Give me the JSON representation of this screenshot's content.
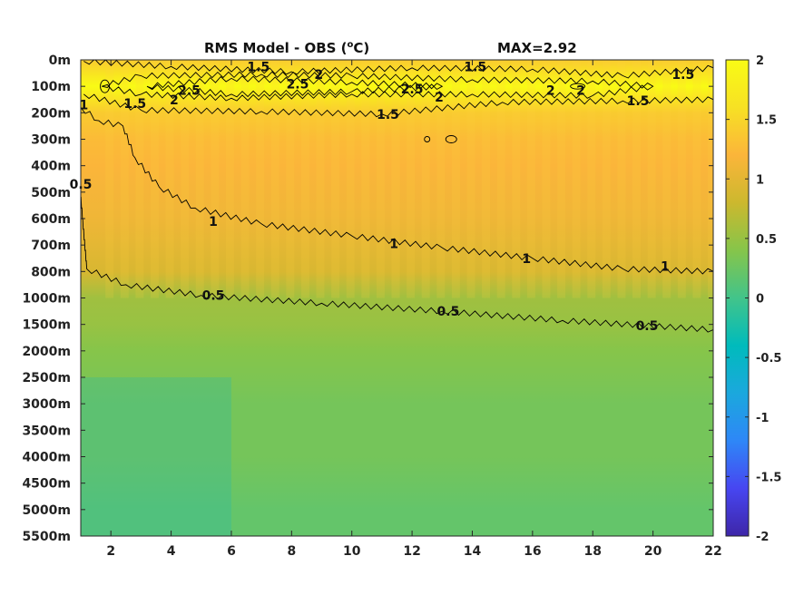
{
  "chart_data": {
    "type": "heatmap",
    "title": "RMS Model - OBS (°C)",
    "title_parts": {
      "before": "RMS Model - OBS (",
      "superscript": "o",
      "after": "C)"
    },
    "max_label": "MAX=2.92",
    "xlim": [
      1,
      22
    ],
    "x_ticks": [
      2,
      4,
      6,
      8,
      10,
      12,
      14,
      16,
      18,
      20,
      22
    ],
    "x_tick_labels": [
      "2",
      "4",
      "6",
      "8",
      "10",
      "12",
      "14",
      "16",
      "18",
      "20",
      "22"
    ],
    "y_levels": [
      "0m",
      "100m",
      "200m",
      "300m",
      "400m",
      "500m",
      "600m",
      "700m",
      "800m",
      "1000m",
      "1500m",
      "2000m",
      "2500m",
      "3000m",
      "3500m",
      "4000m",
      "4500m",
      "5000m",
      "5500m"
    ],
    "colorbar": {
      "range": [
        -2,
        2
      ],
      "ticks": [
        2,
        1.5,
        1,
        0.5,
        0,
        -0.5,
        -1,
        -1.5,
        -2
      ],
      "tick_labels": [
        "2",
        "1.5",
        "1",
        "0.5",
        "0",
        "-0.5",
        "-1",
        "-1.5",
        "-2"
      ],
      "colormap": [
        "#3e26a8",
        "#4746f1",
        "#2e87f7",
        "#1ba8dd",
        "#00bbbc",
        "#42c48a",
        "#86c54a",
        "#ccb82e",
        "#fbb53a",
        "#f7e124",
        "#f9fb15"
      ]
    },
    "depth_profile": [
      {
        "level": "0m",
        "value": 1.4
      },
      {
        "level": "100m",
        "value": 2.5
      },
      {
        "level": "200m",
        "value": 1.4
      },
      {
        "level": "300m",
        "value": 1.25
      },
      {
        "level": "400m",
        "value": 1.2
      },
      {
        "level": "500m",
        "value": 1.15
      },
      {
        "level": "600m",
        "value": 1.1
      },
      {
        "level": "700m",
        "value": 1.0
      },
      {
        "level": "800m",
        "value": 0.9
      },
      {
        "level": "1000m",
        "value": 0.55
      },
      {
        "level": "1500m",
        "value": 0.5
      },
      {
        "level": "2000m",
        "value": 0.4
      },
      {
        "level": "2500m",
        "value": 0.35
      },
      {
        "level": "3000m",
        "value": 0.3
      },
      {
        "level": "3500m",
        "value": 0.3
      },
      {
        "level": "4000m",
        "value": 0.3
      },
      {
        "level": "4500m",
        "value": 0.25
      },
      {
        "level": "5000m",
        "value": 0.2
      },
      {
        "level": "5500m",
        "value": 0.2
      }
    ],
    "contour_labels": [
      {
        "text": "1.5",
        "x": 6.9,
        "level_index": 0.25
      },
      {
        "text": "2",
        "x": 8.9,
        "level_index": 0.55
      },
      {
        "text": "1.5",
        "x": 14.1,
        "level_index": 0.25
      },
      {
        "text": "1.5",
        "x": 21.0,
        "level_index": 0.55
      },
      {
        "text": "2.5",
        "x": 4.6,
        "level_index": 1.15
      },
      {
        "text": "2.5",
        "x": 8.2,
        "level_index": 0.9
      },
      {
        "text": "2.5",
        "x": 12.0,
        "level_index": 1.1
      },
      {
        "text": "2",
        "x": 4.1,
        "level_index": 1.5
      },
      {
        "text": "2",
        "x": 12.9,
        "level_index": 1.4
      },
      {
        "text": "2",
        "x": 16.6,
        "level_index": 1.15
      },
      {
        "text": "2",
        "x": 17.6,
        "level_index": 1.15
      },
      {
        "text": "1.5",
        "x": 2.8,
        "level_index": 1.65
      },
      {
        "text": "1.5",
        "x": 11.2,
        "level_index": 2.05
      },
      {
        "text": "1.5",
        "x": 19.5,
        "level_index": 1.55
      },
      {
        "text": "1",
        "x": 1.1,
        "level_index": 1.7
      },
      {
        "text": "0.5",
        "x": 1.0,
        "level_index": 4.7
      },
      {
        "text": "1",
        "x": 5.4,
        "level_index": 6.1
      },
      {
        "text": "1",
        "x": 11.4,
        "level_index": 6.95
      },
      {
        "text": "1",
        "x": 15.8,
        "level_index": 7.5
      },
      {
        "text": "1",
        "x": 20.4,
        "level_index": 7.8
      },
      {
        "text": "0.5",
        "x": 5.4,
        "level_index": 8.9
      },
      {
        "text": "0.5",
        "x": 13.2,
        "level_index": 9.5
      },
      {
        "text": "0.5",
        "x": 19.8,
        "level_index": 10.05
      }
    ],
    "contours": [
      {
        "value": 1.5,
        "points": [
          [
            1.1,
            0.05
          ],
          [
            4,
            0.25
          ],
          [
            8,
            0.45
          ],
          [
            12,
            0.3
          ],
          [
            16,
            0.35
          ],
          [
            19,
            0.6
          ],
          [
            22,
            0.3
          ]
        ]
      },
      {
        "value": 2,
        "points": [
          [
            1.7,
            1.0
          ],
          [
            3,
            0.6
          ],
          [
            7,
            0.55
          ],
          [
            10,
            0.6
          ],
          [
            14,
            0.75
          ],
          [
            18,
            0.8
          ],
          [
            20,
            1.0
          ],
          [
            18,
            1.35
          ],
          [
            14,
            1.3
          ],
          [
            10,
            1.3
          ],
          [
            6,
            1.45
          ],
          [
            3,
            1.3
          ],
          [
            1.7,
            1.0
          ]
        ]
      },
      {
        "value": 2.5,
        "points": [
          [
            3.2,
            1.0
          ],
          [
            6,
            0.7
          ],
          [
            10,
            0.85
          ],
          [
            13,
            1.0
          ],
          [
            10,
            1.2
          ],
          [
            6,
            1.3
          ],
          [
            3.2,
            1.0
          ]
        ]
      },
      {
        "value": 1.5,
        "points": [
          [
            1.1,
            1.3
          ],
          [
            3,
            1.9
          ],
          [
            7,
            1.95
          ],
          [
            11,
            2.05
          ],
          [
            15,
            1.6
          ],
          [
            19,
            1.55
          ],
          [
            22,
            1.5
          ]
        ]
      },
      {
        "value": 1,
        "points": [
          [
            1.0,
            1.8
          ],
          [
            1.6,
            2.3
          ],
          [
            2.4,
            2.5
          ],
          [
            2.8,
            3.7
          ],
          [
            3.6,
            4.8
          ],
          [
            4.8,
            5.6
          ],
          [
            7,
            6.2
          ],
          [
            10,
            6.65
          ],
          [
            13,
            7.1
          ],
          [
            16,
            7.5
          ],
          [
            19,
            7.9
          ],
          [
            22,
            8.0
          ]
        ]
      },
      {
        "value": 0.5,
        "points": [
          [
            0.9,
            1.8
          ],
          [
            0.95,
            4.5
          ],
          [
            1.2,
            7.9
          ],
          [
            2.5,
            8.5
          ],
          [
            5,
            8.9
          ],
          [
            9,
            9.2
          ],
          [
            13,
            9.5
          ],
          [
            17,
            9.85
          ],
          [
            22,
            10.2
          ]
        ]
      }
    ]
  }
}
